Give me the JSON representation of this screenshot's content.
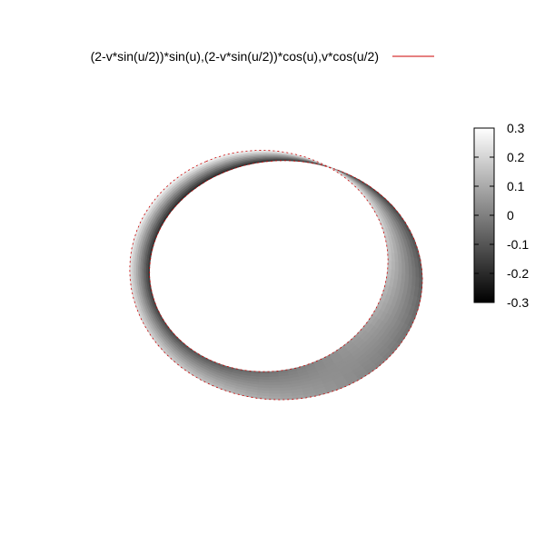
{
  "chart_data": {
    "type": "surface",
    "legend": {
      "label": "(2-v*sin(u/2))*sin(u),(2-v*sin(u/2))*cos(u),v*cos(u/2)",
      "line_color": "#cc0000",
      "position": "top"
    },
    "colorbar": {
      "range": [
        -0.3,
        0.3
      ],
      "ticks": [
        "0.3",
        "0.2",
        "0.1",
        "0",
        "-0.1",
        "-0.2",
        "-0.3"
      ],
      "palette": "gray",
      "position": "right"
    },
    "parametric": {
      "x": "(2-v*sin(u/2))*sin(u)",
      "y": "(2-v*sin(u/2))*cos(u)",
      "z": "v*cos(u/2)",
      "u_range": [
        0,
        6.283
      ],
      "v_range": [
        -0.3,
        0.3
      ]
    },
    "grid": false
  }
}
